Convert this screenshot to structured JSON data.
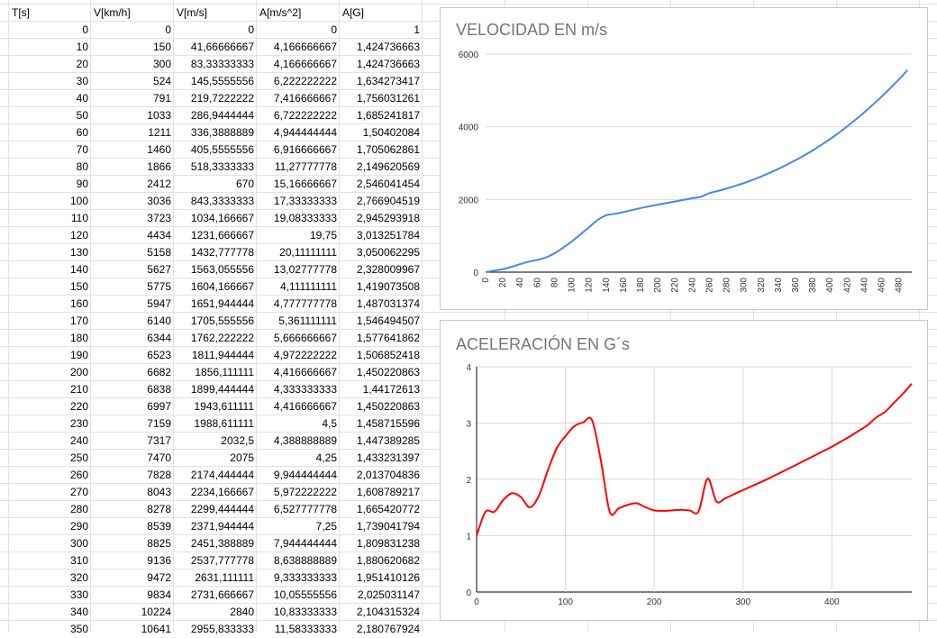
{
  "sheet": {
    "headers": [
      "T[s]",
      "V[km/h]",
      "V[m/s]",
      "A[m/s^2]",
      "A[G]"
    ],
    "rows": [
      [
        "0",
        "0",
        "0",
        "0",
        "1"
      ],
      [
        "10",
        "150",
        "41,66666667",
        "4,166666667",
        "1,424736663"
      ],
      [
        "20",
        "300",
        "83,33333333",
        "4,166666667",
        "1,424736663"
      ],
      [
        "30",
        "524",
        "145,5555556",
        "6,222222222",
        "1,634273417"
      ],
      [
        "40",
        "791",
        "219,7222222",
        "7,416666667",
        "1,756031261"
      ],
      [
        "50",
        "1033",
        "286,9444444",
        "6,722222222",
        "1,685241817"
      ],
      [
        "60",
        "1211",
        "336,3888889",
        "4,944444444",
        "1,50402084"
      ],
      [
        "70",
        "1460",
        "405,5555556",
        "6,916666667",
        "1,705062861"
      ],
      [
        "80",
        "1866",
        "518,3333333",
        "11,27777778",
        "2,149620569"
      ],
      [
        "90",
        "2412",
        "670",
        "15,16666667",
        "2,546041454"
      ],
      [
        "100",
        "3036",
        "843,3333333",
        "17,33333333",
        "2,766904519"
      ],
      [
        "110",
        "3723",
        "1034,166667",
        "19,08333333",
        "2,945293918"
      ],
      [
        "120",
        "4434",
        "1231,666667",
        "19,75",
        "3,013251784"
      ],
      [
        "130",
        "5158",
        "1432,777778",
        "20,11111111",
        "3,050062295"
      ],
      [
        "140",
        "5627",
        "1563,055556",
        "13,02777778",
        "2,328009967"
      ],
      [
        "150",
        "5775",
        "1604,166667",
        "4,111111111",
        "1,419073508"
      ],
      [
        "160",
        "5947",
        "1651,944444",
        "4,777777778",
        "1,487031374"
      ],
      [
        "170",
        "6140",
        "1705,555556",
        "5,361111111",
        "1,546494507"
      ],
      [
        "180",
        "6344",
        "1762,222222",
        "5,666666667",
        "1,577641862"
      ],
      [
        "190",
        "6523",
        "1811,944444",
        "4,972222222",
        "1,506852418"
      ],
      [
        "200",
        "6682",
        "1856,111111",
        "4,416666667",
        "1,450220863"
      ],
      [
        "210",
        "6838",
        "1899,444444",
        "4,333333333",
        "1,44172613"
      ],
      [
        "220",
        "6997",
        "1943,611111",
        "4,416666667",
        "1,450220863"
      ],
      [
        "230",
        "7159",
        "1988,611111",
        "4,5",
        "1,458715596"
      ],
      [
        "240",
        "7317",
        "2032,5",
        "4,388888889",
        "1,447389285"
      ],
      [
        "250",
        "7470",
        "2075",
        "4,25",
        "1,433231397"
      ],
      [
        "260",
        "7828",
        "2174,444444",
        "9,944444444",
        "2,013704836"
      ],
      [
        "270",
        "8043",
        "2234,166667",
        "5,972222222",
        "1,608789217"
      ],
      [
        "280",
        "8278",
        "2299,444444",
        "6,527777778",
        "1,665420772"
      ],
      [
        "290",
        "8539",
        "2371,944444",
        "7,25",
        "1,739041794"
      ],
      [
        "300",
        "8825",
        "2451,388889",
        "7,944444444",
        "1,809831238"
      ],
      [
        "310",
        "9136",
        "2537,777778",
        "8,638888889",
        "1,880620682"
      ],
      [
        "320",
        "9472",
        "2631,111111",
        "9,333333333",
        "1,951410126"
      ],
      [
        "330",
        "9834",
        "2731,666667",
        "10,05555556",
        "2,025031147"
      ],
      [
        "340",
        "10224",
        "2840",
        "10,83333333",
        "2,104315324"
      ],
      [
        "350",
        "10641",
        "2955,833333",
        "11,58333333",
        "2,180767924"
      ]
    ]
  },
  "chart_data": [
    {
      "type": "line",
      "title": "VELOCIDAD EN m/s",
      "xlabel": "",
      "ylabel": "",
      "color": "#4a86e8",
      "ylim": [
        0,
        6000
      ],
      "yticks": [
        0,
        2000,
        4000,
        6000
      ],
      "xticks": [
        0,
        20,
        40,
        60,
        80,
        100,
        120,
        140,
        160,
        180,
        200,
        220,
        240,
        260,
        280,
        300,
        320,
        340,
        360,
        380,
        400,
        420,
        440,
        460,
        480
      ],
      "xlim": [
        0,
        495
      ],
      "grid": true,
      "x": [
        0,
        10,
        20,
        30,
        40,
        50,
        60,
        70,
        80,
        90,
        100,
        110,
        120,
        130,
        140,
        150,
        160,
        170,
        180,
        190,
        200,
        210,
        220,
        230,
        240,
        250,
        260,
        270,
        280,
        290,
        300,
        310,
        320,
        330,
        340,
        350,
        360,
        370,
        380,
        390,
        400,
        410,
        420,
        430,
        440,
        450,
        460,
        470,
        480,
        490
      ],
      "values": [
        0,
        41.7,
        83.3,
        145.6,
        219.7,
        286.9,
        336.4,
        405.6,
        518.3,
        670,
        843.3,
        1034.2,
        1231.7,
        1432.8,
        1563.1,
        1604.2,
        1651.9,
        1705.6,
        1762.2,
        1811.9,
        1856.1,
        1899.4,
        1943.6,
        1988.6,
        2032.5,
        2075,
        2174.4,
        2234.2,
        2299.4,
        2371.9,
        2451.4,
        2537.8,
        2631.1,
        2731.7,
        2840,
        2955.8,
        3080,
        3210,
        3350,
        3500,
        3660,
        3830,
        4010,
        4200,
        4400,
        4610,
        4830,
        5060,
        5300,
        5560
      ]
    },
    {
      "type": "line",
      "title": "ACELERACIÓN EN G´s",
      "xlabel": "",
      "ylabel": "",
      "color": "#ff0000",
      "ylim": [
        0,
        4
      ],
      "yticks": [
        0,
        1,
        2,
        3,
        4
      ],
      "xticks": [
        0,
        100,
        200,
        300,
        400
      ],
      "xlim": [
        0,
        490
      ],
      "grid": true,
      "x": [
        0,
        10,
        20,
        30,
        40,
        50,
        60,
        70,
        80,
        90,
        100,
        110,
        120,
        130,
        140,
        150,
        160,
        170,
        180,
        190,
        200,
        210,
        220,
        230,
        240,
        250,
        260,
        270,
        280,
        290,
        300,
        310,
        320,
        330,
        340,
        350,
        360,
        370,
        380,
        390,
        400,
        410,
        420,
        430,
        440,
        450,
        460,
        470,
        480,
        490
      ],
      "values": [
        1,
        1.425,
        1.425,
        1.634,
        1.756,
        1.685,
        1.504,
        1.705,
        2.15,
        2.546,
        2.767,
        2.945,
        3.013,
        3.05,
        2.328,
        1.419,
        1.487,
        1.546,
        1.578,
        1.507,
        1.45,
        1.442,
        1.45,
        1.459,
        1.447,
        1.433,
        2.014,
        1.609,
        1.665,
        1.739,
        1.81,
        1.881,
        1.951,
        2.025,
        2.104,
        2.181,
        2.26,
        2.34,
        2.42,
        2.5,
        2.58,
        2.67,
        2.76,
        2.86,
        2.96,
        3.1,
        3.2,
        3.36,
        3.52,
        3.7
      ]
    }
  ]
}
